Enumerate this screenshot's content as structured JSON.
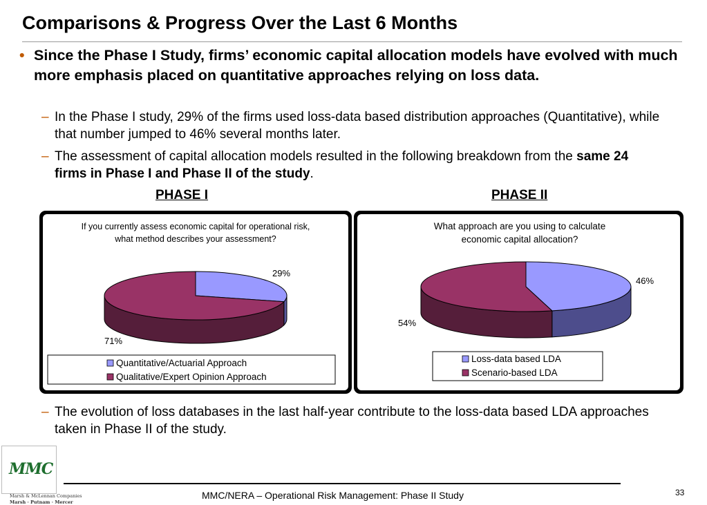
{
  "slide": {
    "title": "Comparisons & Progress Over the Last 6 Months",
    "bullet_marker": "•",
    "dash_marker": "–",
    "main_bullet": "Since the Phase I Study, firms’ economic capital allocation models have evolved with much more emphasis placed on quantitative approaches relying on loss data.",
    "sub1": "In the Phase I study, 29% of the firms used loss-data based distribution approaches (Quantitative), while that number jumped to 46% several months later.",
    "sub2_text": "The assessment of capital allocation models resulted in the following breakdown from the ",
    "sub2_bold": "same 24 firms in Phase I and Phase II of the study",
    "sub2_end": ".",
    "phase1_label": "PHASE I",
    "phase2_label": "PHASE II",
    "sub3": "The evolution of loss databases in the last half-year contribute to the loss-data based LDA approaches taken in Phase II of the study."
  },
  "chart_data": [
    {
      "type": "pie",
      "title": "If you currently assess economic capital for operational risk, what method describes your assessment?",
      "categories": [
        "Quantitative/Actuarial Approach",
        "Qualitative/Expert Opinion Approach"
      ],
      "values": [
        29,
        71
      ],
      "data_labels": [
        "29%",
        "71%"
      ],
      "colors": [
        "#9999ff",
        "#993366"
      ],
      "side_colors": [
        "#5a5aa0",
        "#551e3a"
      ],
      "legend_placement": "bottom"
    },
    {
      "type": "pie",
      "title": "What approach are you using to calculate economic capital allocation?",
      "categories": [
        "Loss-data based LDA",
        "Scenario-based LDA"
      ],
      "values": [
        46,
        54
      ],
      "data_labels": [
        "46%",
        "54%"
      ],
      "colors": [
        "#9999ff",
        "#993366"
      ],
      "side_colors": [
        "#4d4d8c",
        "#551e3a"
      ],
      "legend_placement": "bottom"
    }
  ],
  "footer": {
    "text": "MMC/NERA – Operational Risk Management: Phase II Study",
    "page_number": "33"
  },
  "logo": {
    "mark": "MMC",
    "line1": "Marsh & McLennan Companies",
    "line2": "Marsh · Putnam · Mercer"
  }
}
